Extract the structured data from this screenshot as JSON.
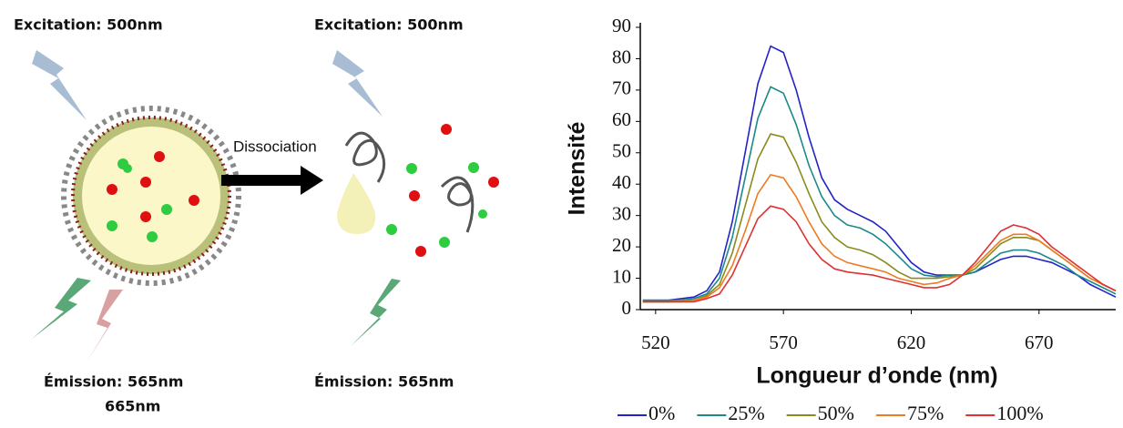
{
  "diagram": {
    "excitation_left": "Excitation: 500nm",
    "excitation_right": "Excitation: 500nm",
    "dissociation": "Dissociation",
    "emission_left": "Émission: 565nm",
    "emission_left_2": "665nm",
    "emission_right": "Émission: 565nm"
  },
  "chart_data": {
    "type": "line",
    "xlabel": "Longueur d’onde (nm)",
    "ylabel": "Intensité",
    "x": [
      515,
      520,
      525,
      530,
      535,
      540,
      545,
      550,
      555,
      560,
      565,
      570,
      575,
      580,
      585,
      590,
      595,
      600,
      605,
      610,
      615,
      620,
      625,
      630,
      635,
      640,
      645,
      650,
      655,
      660,
      665,
      670,
      675,
      680,
      685,
      690,
      695,
      700
    ],
    "series": [
      {
        "name": "0%",
        "color": "#2323c8",
        "values": [
          3,
          3,
          3,
          3.5,
          4,
          6,
          12,
          28,
          50,
          72,
          84,
          82,
          70,
          55,
          42,
          35,
          32,
          30,
          28,
          25,
          20,
          15,
          12,
          11,
          11,
          11,
          12,
          14,
          16,
          17,
          17,
          16,
          15,
          13,
          11,
          8,
          6,
          4
        ]
      },
      {
        "name": "25%",
        "color": "#1b8a8a",
        "values": [
          3,
          3,
          3,
          3,
          3.5,
          5,
          10,
          23,
          42,
          61,
          71,
          69,
          59,
          46,
          36,
          30,
          27,
          26,
          24,
          21,
          17,
          13,
          11,
          10.5,
          11,
          11,
          12,
          15,
          18,
          19,
          19,
          18,
          16,
          14,
          11,
          9,
          7,
          5
        ]
      },
      {
        "name": "50%",
        "color": "#8a8a1e",
        "values": [
          2.5,
          2.5,
          2.5,
          3,
          3,
          4.5,
          8,
          18,
          33,
          48,
          56,
          55,
          47,
          37,
          28,
          23,
          20,
          19,
          17.5,
          15,
          12,
          10,
          10,
          10,
          10.5,
          11,
          13,
          17,
          21,
          23,
          23,
          22,
          19,
          16,
          13,
          10,
          8,
          6
        ]
      },
      {
        "name": "75%",
        "color": "#f07a20",
        "values": [
          2.5,
          2.5,
          2.5,
          2.5,
          3,
          4,
          7,
          14,
          25,
          37,
          43,
          42,
          36,
          28,
          21,
          17,
          15,
          14,
          13,
          12,
          10,
          9,
          8,
          8.5,
          10,
          11,
          14,
          18,
          22,
          24,
          24,
          22,
          19,
          16,
          13,
          10,
          8,
          6
        ]
      },
      {
        "name": "100%",
        "color": "#e03030",
        "values": [
          2.5,
          2.5,
          2.5,
          2.5,
          2.5,
          3.5,
          5,
          11,
          20,
          29,
          33,
          32,
          28,
          21,
          16,
          13,
          12,
          11.5,
          11,
          10,
          9,
          8,
          7,
          7,
          8,
          11,
          15,
          20,
          25,
          27,
          26,
          24,
          20,
          17,
          14,
          11,
          8,
          6
        ]
      }
    ],
    "xlim": [
      514,
      700
    ],
    "xticks": [
      520,
      570,
      620,
      670
    ],
    "ylim": [
      0,
      90
    ],
    "yticks": [
      0,
      10,
      20,
      30,
      40,
      50,
      60,
      70,
      80,
      90
    ],
    "grid": false,
    "legend": "bottom"
  }
}
